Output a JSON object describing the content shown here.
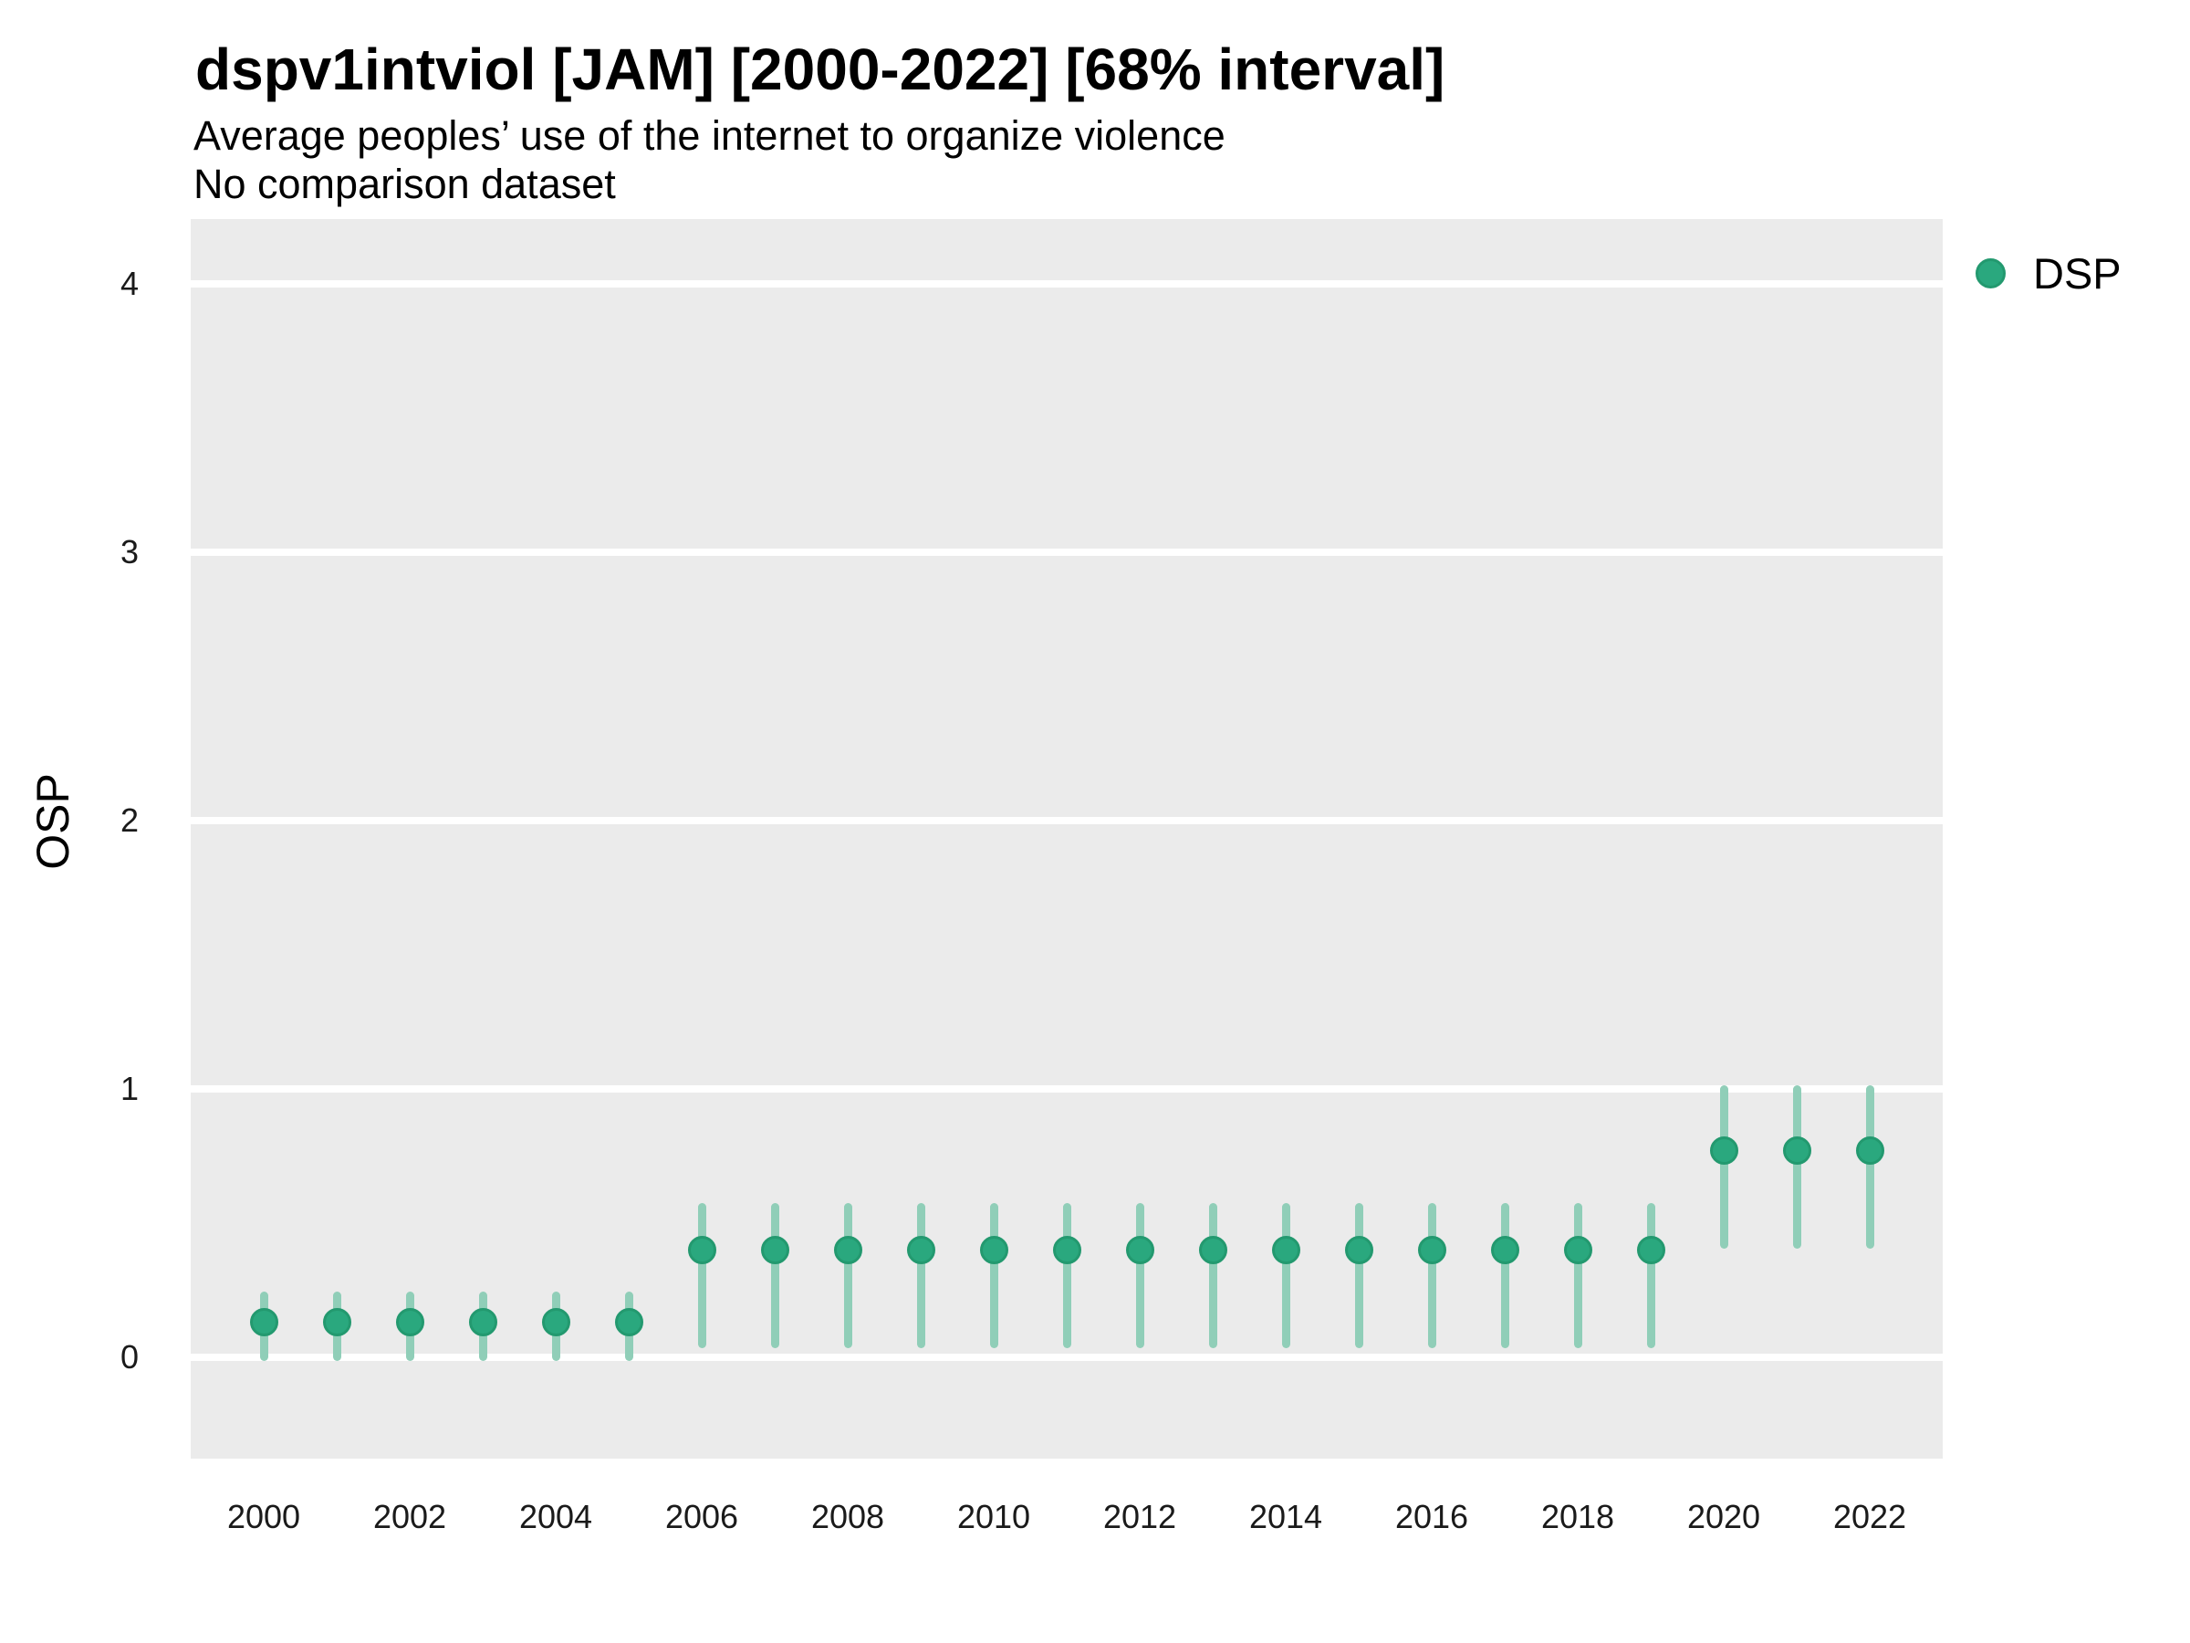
{
  "title": "dspv1intviol [JAM] [2000-2022] [68% interval]",
  "subtitle": "Average peoples’ use of the internet to organize violence",
  "note": "No comparison dataset",
  "y_axis_title": "OSP",
  "legend": [
    {
      "label": "DSP",
      "color": "#2aa87e"
    }
  ],
  "colors": {
    "point_fill": "#2aa87e",
    "point_stroke": "#23996f",
    "interval_bar": "#90ceb8",
    "panel_bg": "#ebebeb",
    "gridline": "#ffffff",
    "title_text": "#000000",
    "axis_text": "#1a1a1a"
  },
  "chart_data": {
    "type": "pointrange",
    "title": "dspv1intviol [JAM] [2000-2022] [68% interval]",
    "subtitle": "Average peoples’ use of the internet to organize violence",
    "note": "No comparison dataset",
    "interval": "68%",
    "xlabel": "",
    "ylabel": "OSP",
    "x": [
      2000,
      2001,
      2002,
      2003,
      2004,
      2005,
      2006,
      2007,
      2008,
      2009,
      2010,
      2011,
      2012,
      2013,
      2014,
      2015,
      2016,
      2017,
      2018,
      2019,
      2020,
      2021,
      2022
    ],
    "x_tick_labels": [
      "2000",
      "2002",
      "2004",
      "2006",
      "2008",
      "2010",
      "2012",
      "2014",
      "2016",
      "2018",
      "2020",
      "2022"
    ],
    "y_ticks": [
      0,
      1,
      2,
      3,
      4
    ],
    "ylim": [
      -0.38,
      4.25
    ],
    "grid": "horizontal-major-only",
    "legend_position": "right",
    "series": [
      {
        "name": "DSP",
        "estimates": [
          0.13,
          0.13,
          0.13,
          0.13,
          0.13,
          0.13,
          0.4,
          0.4,
          0.4,
          0.4,
          0.4,
          0.4,
          0.4,
          0.4,
          0.4,
          0.4,
          0.4,
          0.4,
          0.4,
          0.4,
          0.77,
          0.77,
          0.77
        ],
        "lower": [
          0.0,
          0.0,
          0.0,
          0.0,
          0.0,
          0.0,
          0.05,
          0.05,
          0.05,
          0.05,
          0.05,
          0.05,
          0.05,
          0.05,
          0.05,
          0.05,
          0.05,
          0.05,
          0.05,
          0.05,
          0.42,
          0.42,
          0.42
        ],
        "upper": [
          0.23,
          0.23,
          0.23,
          0.23,
          0.23,
          0.23,
          0.56,
          0.56,
          0.56,
          0.56,
          0.56,
          0.56,
          0.56,
          0.56,
          0.56,
          0.56,
          0.56,
          0.56,
          0.56,
          0.56,
          1.0,
          1.0,
          1.0
        ]
      }
    ]
  }
}
